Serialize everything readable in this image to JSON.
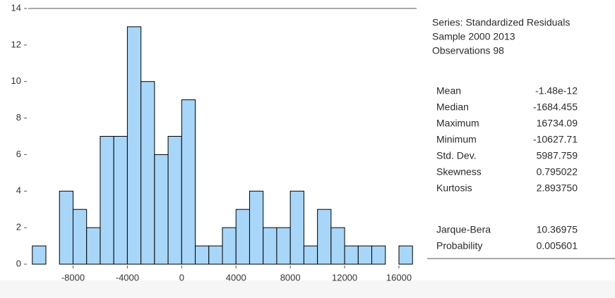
{
  "chart_data": {
    "type": "histogram",
    "bins": [
      -11000,
      -10000,
      -9000,
      -8000,
      -7000,
      -6000,
      -5000,
      -4000,
      -3000,
      -2000,
      -1000,
      0,
      1000,
      2000,
      3000,
      4000,
      5000,
      6000,
      7000,
      8000,
      9000,
      10000,
      11000,
      12000,
      13000,
      14000,
      15000,
      16000,
      17000
    ],
    "values": [
      1,
      0,
      4,
      3,
      2,
      7,
      7,
      13,
      10,
      6,
      7,
      9,
      1,
      1,
      2,
      3,
      4,
      2,
      2,
      4,
      1,
      3,
      2,
      1,
      1,
      1,
      0,
      1
    ],
    "color": "#a8d6f8",
    "xlim": [
      -11300,
      17300
    ],
    "xticks": [
      -8000,
      -4000,
      0,
      4000,
      8000,
      12000,
      16000
    ],
    "ylim": [
      0,
      14
    ],
    "yticks": [
      0,
      2,
      4,
      6,
      8,
      10,
      12,
      14
    ]
  },
  "stats_panel": {
    "header": [
      "Series: Standardized Residuals",
      "Sample 2000 2013",
      "Observations 98"
    ],
    "rows": [
      [
        "Mean",
        "-1.48e-12"
      ],
      [
        "Median",
        "-1684.455"
      ],
      [
        "Maximum",
        "16734.09"
      ],
      [
        "Minimum",
        "-10627.71"
      ],
      [
        "Std. Dev.",
        "5987.759"
      ],
      [
        "Skewness",
        "0.795022"
      ],
      [
        "Kurtosis",
        "2.893750"
      ]
    ],
    "tests": [
      [
        "Jarque-Bera",
        "10.36975"
      ],
      [
        "Probability",
        "0.005601"
      ]
    ]
  }
}
